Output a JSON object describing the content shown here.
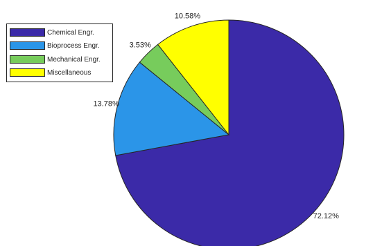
{
  "chart_data": {
    "type": "pie",
    "categories": [
      "Chemical Engr.",
      "Bioprocess Engr.",
      "Mechanical Engr.",
      "Miscellaneous"
    ],
    "values": [
      72.12,
      13.78,
      3.53,
      10.58
    ],
    "labels": [
      "72.12%",
      "13.78%",
      "3.53%",
      "10.58%"
    ],
    "colors": [
      "#3b2aa8",
      "#2b95e8",
      "#77cc5c",
      "#ffff00"
    ],
    "edge_color": "#262626",
    "start_angle": "90 degrees (12 o'clock)",
    "direction": "clockwise",
    "legend_placement": "top-left",
    "title": ""
  }
}
